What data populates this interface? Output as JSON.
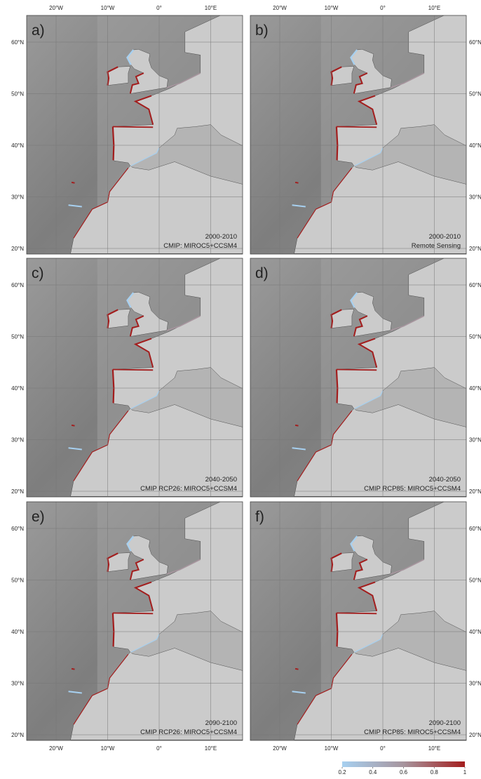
{
  "panels": [
    {
      "label": "a)",
      "period": "2000-2010",
      "source": "CMIP: MIROC5+CCSM4"
    },
    {
      "label": "b)",
      "period": "2000-2010",
      "source": "Remote Sensing"
    },
    {
      "label": "c)",
      "period": "2040-2050",
      "source": "CMIP RCP26: MIROC5+CCSM4"
    },
    {
      "label": "d)",
      "period": "2040-2050",
      "source": "CMIP RCP85: MIROC5+CCSM4"
    },
    {
      "label": "e)",
      "period": "2090-2100",
      "source": "CMIP RCP26: MIROC5+CCSM4"
    },
    {
      "label": "f)",
      "period": "2090-2100",
      "source": "CMIP RCP85: MIROC5+CCSM4"
    }
  ],
  "lon_labels": [
    "20°W",
    "10°W",
    "0°",
    "10°E"
  ],
  "lat_labels": [
    "60°N",
    "50°N",
    "40°N",
    "30°N",
    "20°N"
  ],
  "colorbar": {
    "ticks": [
      0.2,
      0.4,
      0.6,
      0.8,
      1
    ],
    "colors": [
      "#a7d0f0",
      "#a7959e",
      "#a31d1d"
    ]
  }
}
